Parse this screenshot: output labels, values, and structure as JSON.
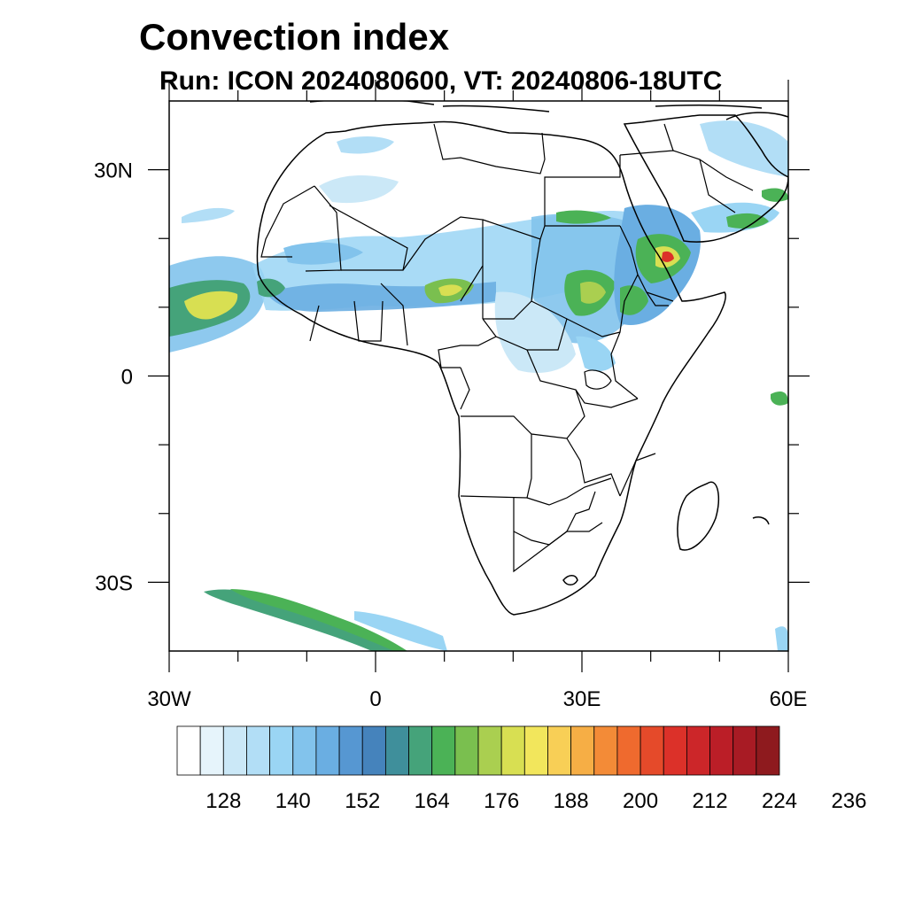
{
  "title": "Convection index",
  "subtitle": "Run: ICON 2024080600,  VT: 20240806-18UTC",
  "map": {
    "lon_range": [
      -30,
      60
    ],
    "lat_range": [
      -40,
      40
    ],
    "x_tick_labels": [
      {
        "lon": -30,
        "label": "30W"
      },
      {
        "lon": 0,
        "label": "0"
      },
      {
        "lon": 30,
        "label": "30E"
      },
      {
        "lon": 60,
        "label": "60E"
      }
    ],
    "y_tick_labels": [
      {
        "lat": 30,
        "label": "30N"
      },
      {
        "lat": 0,
        "label": "0"
      },
      {
        "lat": -30,
        "label": "30S"
      }
    ],
    "minor_lon_ticks": [
      -20,
      -10,
      10,
      20,
      40,
      50
    ],
    "minor_lat_ticks": [
      20,
      10,
      -10,
      -20
    ]
  },
  "colorbar": {
    "colors": [
      "#ffffff",
      "#e6f4fb",
      "#cbe8f7",
      "#b2def6",
      "#9ad5f4",
      "#82c3ec",
      "#6aaee2",
      "#5697d2",
      "#4583bc",
      "#3f8f9b",
      "#45a37a",
      "#4bb256",
      "#7abf4f",
      "#aacf50",
      "#d8df52",
      "#f2e65c",
      "#f8cf56",
      "#f6ae45",
      "#f38b37",
      "#ef6a2e",
      "#e54a2a",
      "#dc3129",
      "#cc2629",
      "#bb1e27",
      "#a81b24",
      "#8e1a1e"
    ],
    "labels": [
      "128",
      "140",
      "152",
      "164",
      "176",
      "188",
      "200",
      "212",
      "224",
      "236"
    ]
  }
}
